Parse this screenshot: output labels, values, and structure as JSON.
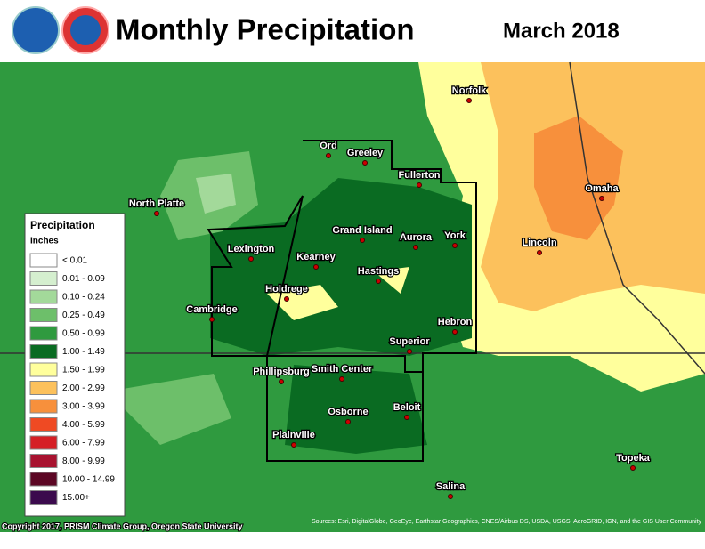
{
  "header": {
    "title": "Monthly Precipitation",
    "date": "March 2018"
  },
  "legend": {
    "title": "Precipitation",
    "units": "Inches",
    "items": [
      {
        "label": "< 0.01",
        "color": "#ffffff"
      },
      {
        "label": "0.01 - 0.09",
        "color": "#d5efcf"
      },
      {
        "label": "0.10 - 0.24",
        "color": "#a3d99a"
      },
      {
        "label": "0.25 - 0.49",
        "color": "#6dbf6a"
      },
      {
        "label": "0.50 - 0.99",
        "color": "#2f9a3f"
      },
      {
        "label": "1.00 - 1.49",
        "color": "#0a6b22"
      },
      {
        "label": "1.50 - 1.99",
        "color": "#ffff9c"
      },
      {
        "label": "2.00 - 2.99",
        "color": "#fcc15c"
      },
      {
        "label": "3.00 - 3.99",
        "color": "#f7903c"
      },
      {
        "label": "4.00 - 5.99",
        "color": "#ef4a23"
      },
      {
        "label": "6.00 - 7.99",
        "color": "#d51f26"
      },
      {
        "label": "8.00 - 9.99",
        "color": "#a8122f"
      },
      {
        "label": "10.00 - 14.99",
        "color": "#5c0624"
      },
      {
        "label": "15.00+",
        "color": "#3b0a4d"
      }
    ]
  },
  "cities": [
    "Ord",
    "Greeley",
    "Norfolk",
    "Fullerton",
    "North Platte",
    "Grand Island",
    "Aurora",
    "York",
    "Lincoln",
    "Omaha",
    "Lexington",
    "Kearney",
    "Hastings",
    "Holdrege",
    "Cambridge",
    "Hebron",
    "Superior",
    "Phillipsburg",
    "Smith Center",
    "Beloit",
    "Osborne",
    "Plainville",
    "Salina",
    "Topeka"
  ],
  "credits": {
    "copyright": "Copyright 2017, PRISM Climate Group, Oregon State University",
    "sources": "Sources: Esri, DigitalGlobe, GeoEye, Earthstar Geographics, CNES/Airbus DS, USDA, USGS, AeroGRID, IGN, and the GIS User Community"
  }
}
